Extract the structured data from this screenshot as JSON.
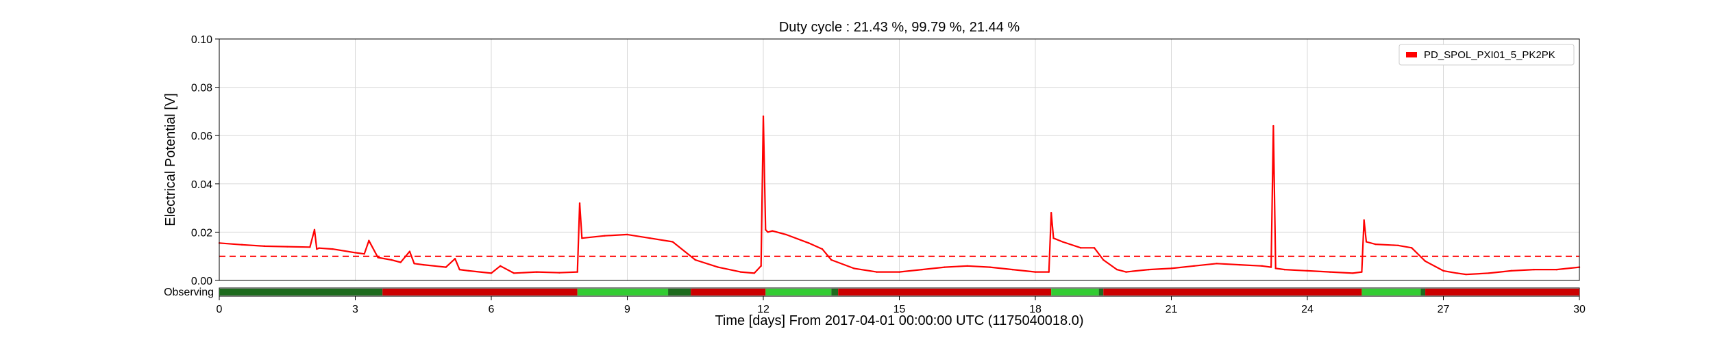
{
  "chart_data": {
    "type": "line",
    "title": "Duty cycle : 21.43 %, 99.79 %, 21.44 %",
    "xlabel": "Time [days] From 2017-04-01 00:00:00 UTC (1175040018.0)",
    "ylabel": "Electrical Potential [V]",
    "xlim": [
      0,
      30
    ],
    "ylim": [
      0,
      0.1
    ],
    "x_ticks": [
      0,
      3,
      6,
      9,
      12,
      15,
      18,
      21,
      24,
      27,
      30
    ],
    "y_ticks": [
      "0.00",
      "0.02",
      "0.04",
      "0.06",
      "0.08",
      "0.10"
    ],
    "grid": true,
    "legend_position": "top-right",
    "colors": {
      "series": "#ff0000",
      "observing_on": "#33cc33",
      "observing_dark": "#1e6b1e",
      "observing_off": "#cc0000",
      "grid": "#d8d8d8"
    },
    "series": [
      {
        "name": "PD_SPOL_PXI01_5_PK2PK",
        "x": [
          0,
          0.5,
          1.0,
          1.5,
          2.0,
          2.1,
          2.15,
          2.2,
          2.5,
          3.0,
          3.2,
          3.3,
          3.5,
          3.8,
          4.0,
          4.2,
          4.3,
          4.5,
          5.0,
          5.2,
          5.3,
          5.5,
          6.0,
          6.2,
          6.5,
          7.0,
          7.5,
          7.9,
          7.95,
          8.0,
          8.5,
          9.0,
          9.5,
          10.0,
          10.5,
          11.0,
          11.5,
          11.8,
          11.95,
          12.0,
          12.05,
          12.1,
          12.2,
          12.5,
          13.0,
          13.3,
          13.5,
          14.0,
          14.5,
          15.0,
          15.5,
          16.0,
          16.5,
          17.0,
          17.5,
          18.0,
          18.3,
          18.35,
          18.4,
          18.6,
          19.0,
          19.3,
          19.5,
          19.8,
          20.0,
          20.5,
          21.0,
          21.5,
          22.0,
          22.5,
          23.0,
          23.2,
          23.25,
          23.3,
          23.5,
          24.0,
          24.5,
          25.0,
          25.2,
          25.25,
          25.3,
          25.5,
          26.0,
          26.3,
          26.6,
          27.0,
          27.3,
          27.5,
          28.0,
          28.5,
          29.0,
          29.5,
          30.0
        ],
        "y": [
          0.0155,
          0.0148,
          0.0142,
          0.014,
          0.0138,
          0.021,
          0.013,
          0.0134,
          0.013,
          0.0115,
          0.011,
          0.0165,
          0.0095,
          0.0085,
          0.0075,
          0.012,
          0.007,
          0.0065,
          0.0055,
          0.009,
          0.0045,
          0.004,
          0.003,
          0.006,
          0.003,
          0.0035,
          0.0032,
          0.0035,
          0.032,
          0.0175,
          0.0185,
          0.019,
          0.0175,
          0.016,
          0.0085,
          0.0055,
          0.0035,
          0.003,
          0.006,
          0.068,
          0.021,
          0.02,
          0.0205,
          0.019,
          0.0155,
          0.013,
          0.0085,
          0.005,
          0.0035,
          0.0035,
          0.0045,
          0.0055,
          0.006,
          0.0055,
          0.0045,
          0.0035,
          0.0035,
          0.028,
          0.0175,
          0.016,
          0.0135,
          0.0135,
          0.0085,
          0.0045,
          0.0035,
          0.0045,
          0.005,
          0.006,
          0.007,
          0.0065,
          0.006,
          0.0055,
          0.064,
          0.005,
          0.0045,
          0.004,
          0.0035,
          0.003,
          0.0035,
          0.025,
          0.016,
          0.015,
          0.0145,
          0.0135,
          0.008,
          0.004,
          0.003,
          0.0025,
          0.003,
          0.004,
          0.0045,
          0.0045,
          0.0055
        ]
      }
    ],
    "threshold": {
      "value": 0.01,
      "style": "dashed"
    },
    "observing_band": {
      "label": "Observing",
      "segments": [
        {
          "start": 0.0,
          "end": 3.6,
          "state": "dark"
        },
        {
          "start": 3.6,
          "end": 7.9,
          "state": "off"
        },
        {
          "start": 7.9,
          "end": 9.9,
          "state": "on"
        },
        {
          "start": 9.9,
          "end": 10.4,
          "state": "dark"
        },
        {
          "start": 10.4,
          "end": 12.05,
          "state": "off"
        },
        {
          "start": 12.05,
          "end": 13.5,
          "state": "on"
        },
        {
          "start": 13.5,
          "end": 13.65,
          "state": "dark"
        },
        {
          "start": 13.65,
          "end": 18.35,
          "state": "off"
        },
        {
          "start": 18.35,
          "end": 19.4,
          "state": "on"
        },
        {
          "start": 19.4,
          "end": 19.5,
          "state": "dark"
        },
        {
          "start": 19.5,
          "end": 25.2,
          "state": "off"
        },
        {
          "start": 25.2,
          "end": 26.5,
          "state": "on"
        },
        {
          "start": 26.5,
          "end": 26.6,
          "state": "dark"
        },
        {
          "start": 26.6,
          "end": 30.0,
          "state": "off"
        }
      ]
    }
  }
}
